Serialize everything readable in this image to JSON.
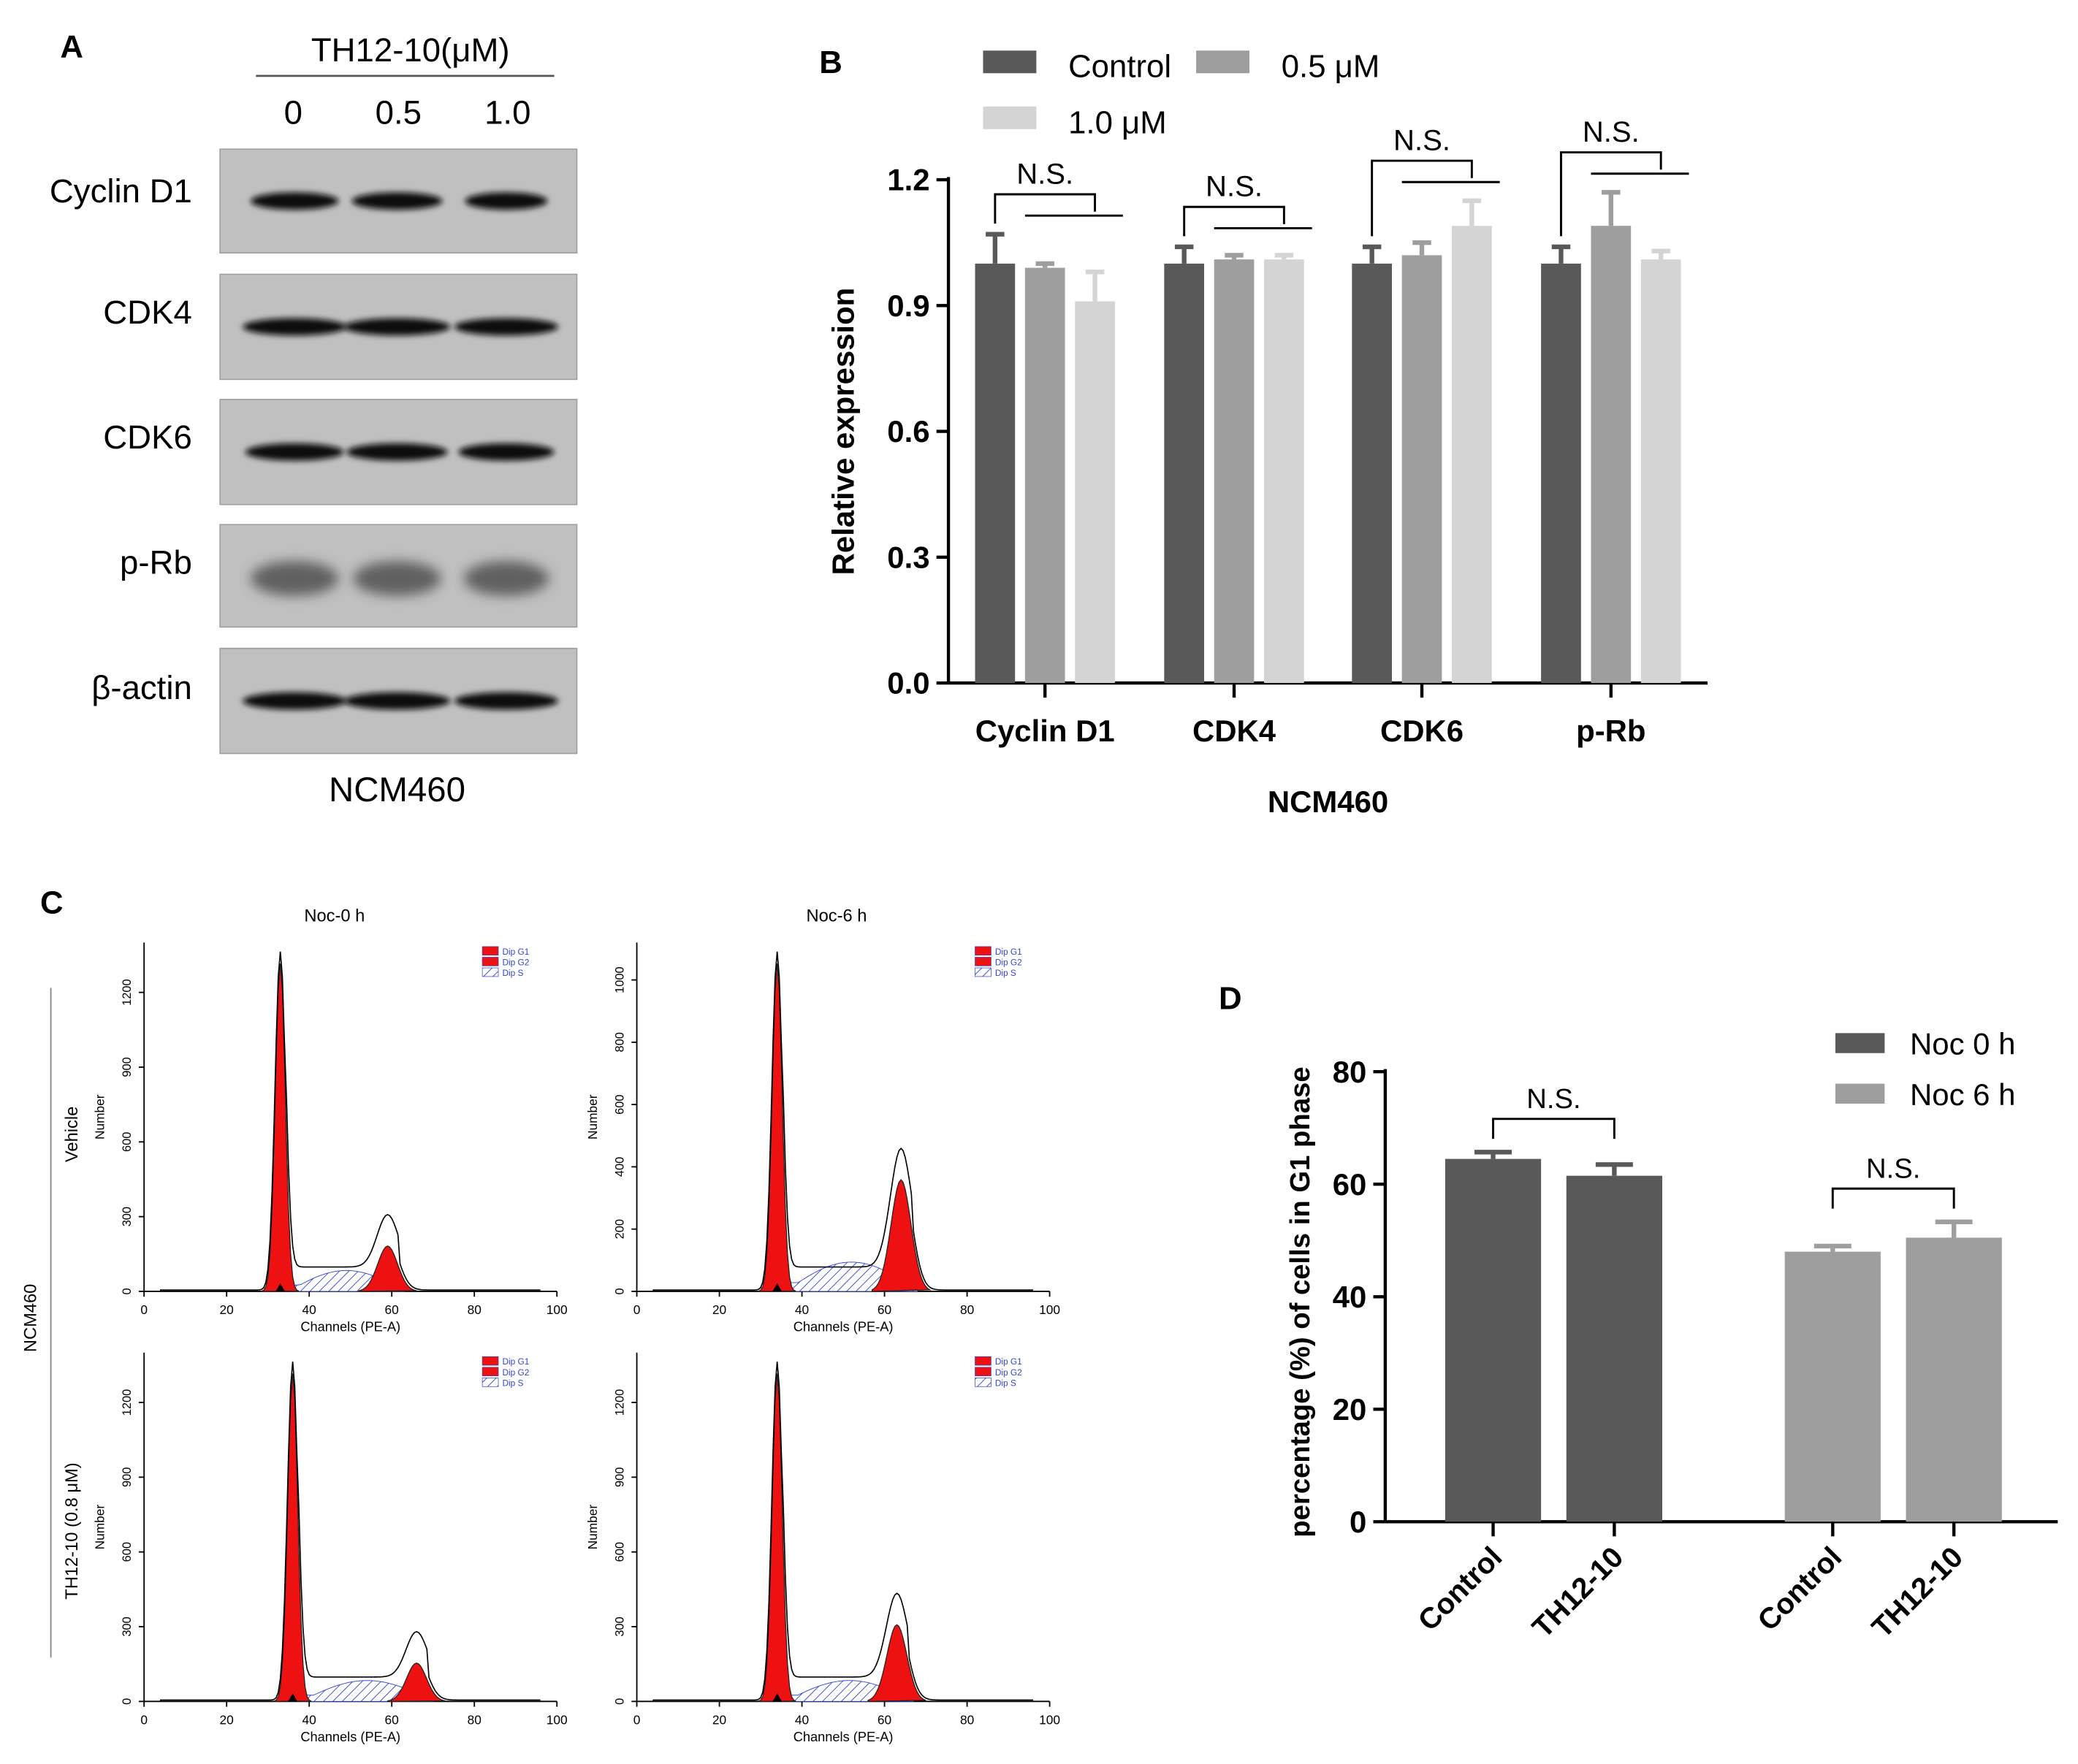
{
  "panels": {
    "a": {
      "letter": "A",
      "header": "TH12-10(μM)",
      "doses": [
        "0",
        "0.5",
        "1.0"
      ],
      "rows": [
        "Cyclin D1",
        "CDK4",
        "CDK6",
        "p-Rb",
        "β-actin"
      ],
      "cell_line": "NCM460"
    },
    "b": {
      "letter": "B"
    },
    "c": {
      "letter": "C",
      "group_label": "NCM460",
      "row_labels": [
        "Vehicle",
        "TH12-10 (0.8 μM)"
      ],
      "col_titles": [
        "Noc-0 h",
        "Noc-6 h"
      ],
      "x_ticks": [
        "0",
        "20",
        "40",
        "60",
        "80",
        "100"
      ],
      "x_label": "Channels (PE-A)",
      "y_label": "Number",
      "legend": [
        "Dip G1",
        "Dip G2",
        "Dip S"
      ],
      "y_ticks": [
        [
          "0",
          "300",
          "600",
          "900",
          "1200"
        ],
        [
          "0",
          "200",
          "400",
          "600",
          "800",
          "1000"
        ],
        [
          "0",
          "300",
          "600",
          "900",
          "1200"
        ],
        [
          "0",
          "300",
          "600",
          "900",
          "1200"
        ]
      ],
      "y_max": [
        1400,
        1120,
        1400,
        1400
      ]
    },
    "d": {
      "letter": "D"
    }
  },
  "chart_data": [
    {
      "type": "bar",
      "title": "",
      "categories": [
        "Cyclin D1",
        "CDK4",
        "CDK6",
        "p-Rb"
      ],
      "series": [
        {
          "name": "Control",
          "values": [
            1.0,
            1.0,
            1.0,
            1.0
          ],
          "errors": [
            0.07,
            0.04,
            0.04,
            0.04
          ],
          "color": "#595959"
        },
        {
          "name": "0.5 μM",
          "values": [
            0.99,
            1.01,
            1.02,
            1.09
          ],
          "errors": [
            0.01,
            0.01,
            0.03,
            0.08
          ],
          "color": "#9e9e9e"
        },
        {
          "name": "1.0 μM",
          "values": [
            0.91,
            1.01,
            1.09,
            1.01
          ],
          "errors": [
            0.07,
            0.01,
            0.06,
            0.02
          ],
          "color": "#d4d4d4"
        }
      ],
      "annotations": [
        "N.S.",
        "N.S.",
        "N.S.",
        "N.S."
      ],
      "xlabel": "NCM460",
      "ylabel": "Relative expression",
      "ylim": [
        0,
        1.2
      ],
      "yticks": [
        "0.0",
        "0.3",
        "0.6",
        "0.9",
        "1.2"
      ],
      "legend_position": "top"
    },
    {
      "type": "bar",
      "title": "",
      "categories": [
        "Control",
        "TH12-10",
        "Control",
        "TH12-10"
      ],
      "groups": [
        {
          "name": "Noc 0 h",
          "color": "#595959",
          "values": [
            64.5,
            61.5
          ],
          "errors": [
            1.2,
            2.0
          ]
        },
        {
          "name": "Noc 6 h",
          "color": "#9e9e9e",
          "values": [
            48.0,
            50.5
          ],
          "errors": [
            1.0,
            2.8
          ]
        }
      ],
      "annotations": [
        "N.S.",
        "N.S."
      ],
      "xlabel": "",
      "ylabel": "percentage (%) of cells in G1 phase",
      "ylim": [
        0,
        80
      ],
      "yticks": [
        "0",
        "20",
        "40",
        "60",
        "80"
      ],
      "legend_position": "top-right"
    }
  ]
}
